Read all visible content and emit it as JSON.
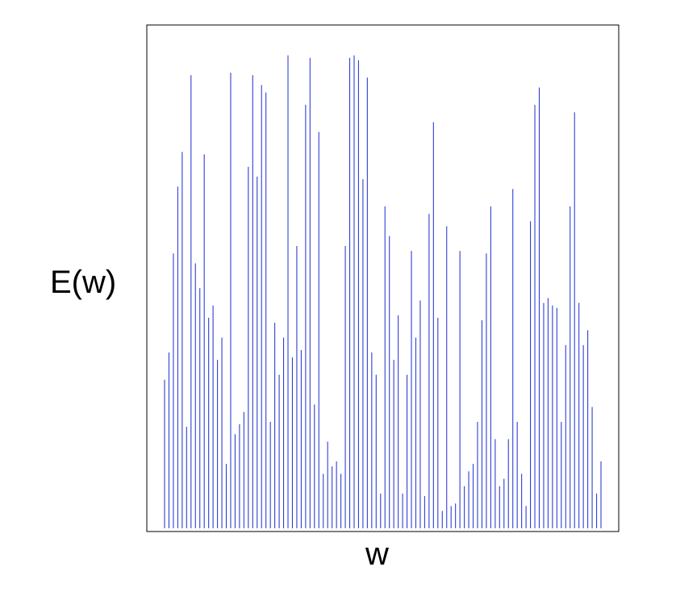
{
  "chart_data": {
    "type": "bar",
    "style": "stem",
    "xlabel": "w",
    "ylabel": "E(w)",
    "x_ticks_shown": false,
    "y_ticks_shown": false,
    "grid": false,
    "legend": "none",
    "bar_color": "#2f3fd6",
    "ylim": [
      0,
      1
    ],
    "values": [
      0.3,
      0.355,
      0.555,
      0.69,
      0.76,
      0.205,
      0.915,
      0.535,
      0.485,
      0.755,
      0.425,
      0.45,
      0.34,
      0.385,
      0.13,
      0.92,
      0.19,
      0.21,
      0.235,
      0.73,
      0.915,
      0.71,
      0.895,
      0.88,
      0.215,
      0.415,
      0.31,
      0.385,
      0.955,
      0.345,
      0.57,
      0.36,
      0.855,
      0.95,
      0.25,
      0.8,
      0.11,
      0.175,
      0.125,
      0.135,
      0.11,
      0.57,
      0.95,
      0.955,
      0.945,
      0.705,
      0.91,
      0.355,
      0.31,
      0.07,
      0.65,
      0.59,
      0.34,
      0.43,
      0.07,
      0.31,
      0.56,
      0.385,
      0.46,
      0.065,
      0.635,
      0.82,
      0.425,
      0.035,
      0.61,
      0.045,
      0.05,
      0.56,
      0.085,
      0.115,
      0.13,
      0.215,
      0.42,
      0.555,
      0.65,
      0.18,
      0.085,
      0.1,
      0.18,
      0.685,
      0.215,
      0.11,
      0.045,
      0.62,
      0.855,
      0.89,
      0.455,
      0.465,
      0.45,
      0.445,
      0.215,
      0.37,
      0.65,
      0.84,
      0.455,
      0.37,
      0.4,
      0.245,
      0.07,
      0.135
    ]
  }
}
